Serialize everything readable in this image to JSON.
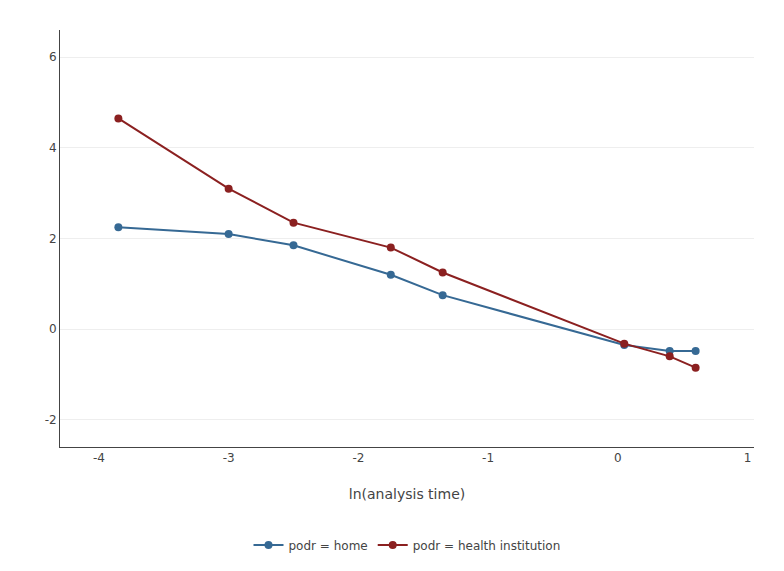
{
  "chart_data": {
    "type": "line",
    "x_label": "ln(analysis time)",
    "x": [
      -3.85,
      -3.0,
      -2.5,
      -1.75,
      -1.35,
      0.05,
      0.4,
      0.6
    ],
    "series": [
      {
        "name": "podr = home",
        "color": "#366994",
        "marker": "circle",
        "line_style": "solid",
        "values": [
          2.25,
          2.1,
          1.85,
          1.2,
          0.75,
          -0.35,
          -0.48,
          -0.48
        ]
      },
      {
        "name": "podr = health institution",
        "color": "#8b2020",
        "marker": "circle",
        "line_style": "solid",
        "values": [
          4.65,
          3.1,
          2.35,
          1.8,
          1.25,
          -0.32,
          -0.6,
          -0.85
        ]
      }
    ],
    "xlim": [
      -4.3,
      1.05
    ],
    "xticks": [
      -4,
      -3,
      -2,
      -1,
      0,
      1
    ],
    "ylim": [
      -2.6,
      6.6
    ],
    "yticks": [
      -2,
      0,
      2,
      4,
      6
    ],
    "grid": "y",
    "legend": "bottom"
  }
}
